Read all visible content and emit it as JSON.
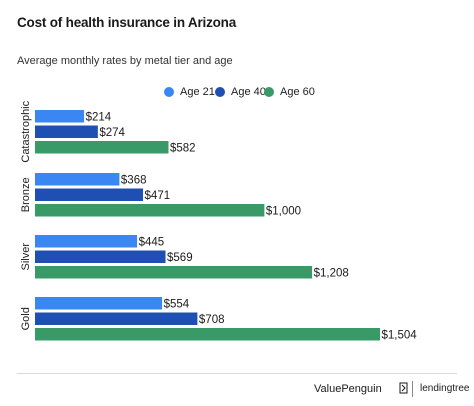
{
  "header": {
    "title": "Cost of health insurance in Arizona",
    "subtitle": "Average monthly rates by metal tier and age"
  },
  "legend": [
    {
      "label": "Age 21",
      "color": "#3a86f2"
    },
    {
      "label": "Age 40",
      "color": "#1f4fb3"
    },
    {
      "label": "Age 60",
      "color": "#3a9a67"
    }
  ],
  "footer": {
    "brand_primary": "ValuePenguin",
    "brand_secondary": "lendingtree",
    "logo_icon": "penguin-icon"
  },
  "chart_data": {
    "type": "bar",
    "orientation": "horizontal",
    "title": "Cost of health insurance in Arizona",
    "subtitle": "Average monthly rates by metal tier and age",
    "categories": [
      "Catastrophic",
      "Bronze",
      "Silver",
      "Gold"
    ],
    "series": [
      {
        "name": "Age 21",
        "color": "#3a86f2",
        "values": [
          214,
          368,
          445,
          554
        ],
        "labels": [
          "$214",
          "$368",
          "$445",
          "$554"
        ]
      },
      {
        "name": "Age 40",
        "color": "#1f4fb3",
        "values": [
          274,
          471,
          569,
          708
        ],
        "labels": [
          "$274",
          "$471",
          "$569",
          "$708"
        ]
      },
      {
        "name": "Age 60",
        "color": "#3a9a67",
        "values": [
          582,
          1000,
          1208,
          1504
        ],
        "labels": [
          "$582",
          "$1,000",
          "$1,208",
          "$1,504"
        ]
      }
    ],
    "xlim": [
      0,
      1504
    ],
    "grid": false,
    "legend_position": "top"
  }
}
